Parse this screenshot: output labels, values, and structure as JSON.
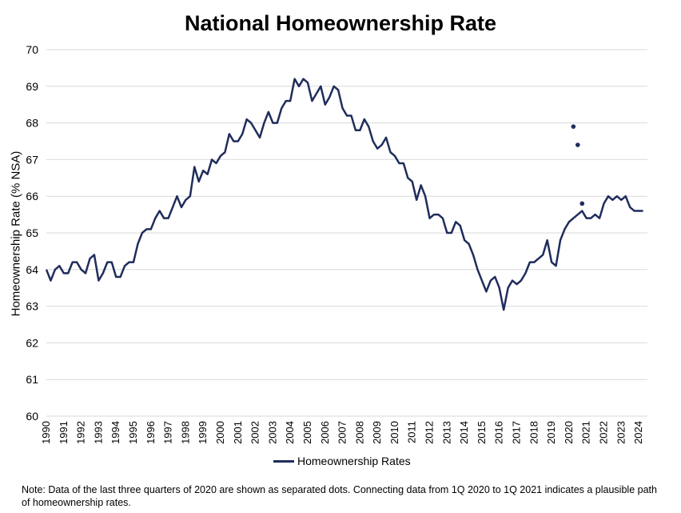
{
  "chart_data": {
    "type": "line",
    "title": "National Homeownership Rate",
    "ylabel": "Homeownership Rate (% NSA)",
    "xlabel": "",
    "ylim": [
      60,
      70
    ],
    "yticks": [
      "60",
      "61",
      "62",
      "63",
      "64",
      "65",
      "66",
      "67",
      "68",
      "69",
      "70"
    ],
    "xticks": [
      "1990",
      "1991",
      "1992",
      "1993",
      "1994",
      "1995",
      "1996",
      "1997",
      "1998",
      "1999",
      "2000",
      "2001",
      "2002",
      "2003",
      "2004",
      "2005",
      "2006",
      "2007",
      "2008",
      "2009",
      "2010",
      "2011",
      "2012",
      "2013",
      "2014",
      "2015",
      "2016",
      "2017",
      "2018",
      "2019",
      "2020",
      "2021",
      "2022",
      "2023",
      "2024"
    ],
    "x_start": 1990,
    "x_step": 0.25,
    "color": "#1f2d5c",
    "grid": true,
    "legend": "bottom",
    "series": [
      {
        "name": "Homeownership Rates",
        "values": [
          64.0,
          63.7,
          64.0,
          64.1,
          63.9,
          63.9,
          64.2,
          64.2,
          64.0,
          63.9,
          64.3,
          64.4,
          63.7,
          63.9,
          64.2,
          64.2,
          63.8,
          63.8,
          64.1,
          64.2,
          64.2,
          64.7,
          65.0,
          65.1,
          65.1,
          65.4,
          65.6,
          65.4,
          65.4,
          65.7,
          66.0,
          65.7,
          65.9,
          66.0,
          66.8,
          66.4,
          66.7,
          66.6,
          67.0,
          66.9,
          67.1,
          67.2,
          67.7,
          67.5,
          67.5,
          67.7,
          68.1,
          68.0,
          67.8,
          67.6,
          68.0,
          68.3,
          68.0,
          68.0,
          68.4,
          68.6,
          68.6,
          69.2,
          69.0,
          69.2,
          69.1,
          68.6,
          68.8,
          69.0,
          68.5,
          68.7,
          69.0,
          68.9,
          68.4,
          68.2,
          68.2,
          67.8,
          67.8,
          68.1,
          67.9,
          67.5,
          67.3,
          67.4,
          67.6,
          67.2,
          67.1,
          66.9,
          66.9,
          66.5,
          66.4,
          65.9,
          66.3,
          66.0,
          65.4,
          65.5,
          65.5,
          65.4,
          65.0,
          65.0,
          65.3,
          65.2,
          64.8,
          64.7,
          64.4,
          64.0,
          63.7,
          63.4,
          63.7,
          63.8,
          63.5,
          62.9,
          63.5,
          63.7,
          63.6,
          63.7,
          63.9,
          64.2,
          64.2,
          64.3,
          64.4,
          64.8,
          64.2,
          64.1,
          64.8,
          65.1,
          65.3,
          65.4,
          65.5,
          65.6,
          65.4,
          65.4,
          65.5,
          65.4,
          65.8,
          66.0,
          65.9,
          66.0,
          65.9,
          66.0,
          65.7,
          65.6,
          65.6,
          65.6
        ]
      }
    ],
    "separated_points": [
      {
        "x": 2020.25,
        "y": 67.9
      },
      {
        "x": 2020.5,
        "y": 67.4
      },
      {
        "x": 2020.75,
        "y": 65.8
      }
    ]
  },
  "legend_label": "Homeownership Rates",
  "note": "Note: Data of the last three quarters of 2020 are shown as separated dots. Connecting data from 1Q 2020  to 1Q 2021 indicates a plausible path of homeownership rates."
}
